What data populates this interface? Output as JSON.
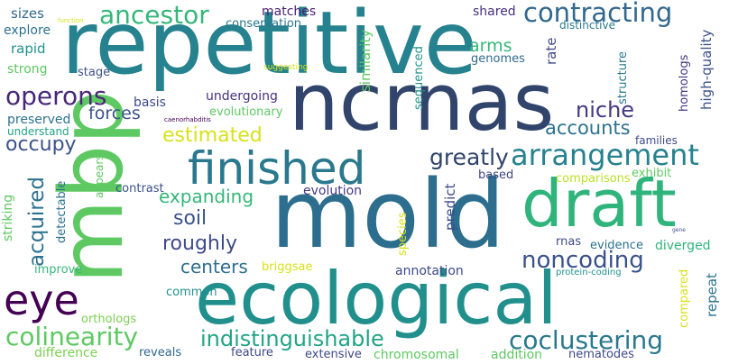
{
  "words": [
    {
      "text": "repetitive",
      "color": "#26828e"
    },
    {
      "text": "ncrnas",
      "color": "#31446b"
    },
    {
      "text": "mold",
      "color": "#2d6e8e"
    },
    {
      "text": "ecological",
      "color": "#21908c"
    },
    {
      "text": "mbp",
      "color": "#5ec962"
    },
    {
      "text": "finished",
      "color": "#2a788e"
    },
    {
      "text": "draft",
      "color": "#2fb47c"
    },
    {
      "text": "eye",
      "color": "#440154"
    },
    {
      "text": "ancestor",
      "color": "#35b779"
    },
    {
      "text": "operons",
      "color": "#482878"
    },
    {
      "text": "contracting",
      "color": "#31688e"
    },
    {
      "text": "arrangement",
      "color": "#26828e"
    },
    {
      "text": "colinearity",
      "color": "#5ec962"
    },
    {
      "text": "coclustering",
      "color": "#2a788e"
    },
    {
      "text": "indistinguishable",
      "color": "#21a585"
    },
    {
      "text": "noncoding",
      "color": "#3b528b"
    },
    {
      "text": "greatly",
      "color": "#31446b"
    },
    {
      "text": "niche",
      "color": "#443983"
    },
    {
      "text": "accounts",
      "color": "#2c728e"
    },
    {
      "text": "acquired",
      "color": "#2c718e"
    },
    {
      "text": "expanding",
      "color": "#35b779"
    },
    {
      "text": "estimated",
      "color": "#d8e219"
    },
    {
      "text": "roughly",
      "color": "#3e4a89"
    },
    {
      "text": "centers",
      "color": "#2e6d8e"
    },
    {
      "text": "soil",
      "color": "#3b528b"
    },
    {
      "text": "forces",
      "color": "#3b528b"
    },
    {
      "text": "occupy",
      "color": "#3b528b"
    },
    {
      "text": "arms",
      "color": "#35b779"
    },
    {
      "text": "matches",
      "color": "#481f70"
    },
    {
      "text": "conservation",
      "color": "#2a788e"
    },
    {
      "text": "shared",
      "color": "#46327e"
    },
    {
      "text": "distinctive",
      "color": "#2a788e"
    },
    {
      "text": "sizes",
      "color": "#31688e"
    },
    {
      "text": "explore",
      "color": "#2c728e"
    },
    {
      "text": "rapid",
      "color": "#21918c"
    },
    {
      "text": "strong",
      "color": "#5ec962"
    },
    {
      "text": "stage",
      "color": "#3b528b"
    },
    {
      "text": "undergoing",
      "color": "#46327e"
    },
    {
      "text": "basis",
      "color": "#3e4a89"
    },
    {
      "text": "evolutionary",
      "color": "#5ec962"
    },
    {
      "text": "preserved",
      "color": "#2c728e"
    },
    {
      "text": "understand",
      "color": "#20a386"
    },
    {
      "text": "genomes",
      "color": "#31688e"
    },
    {
      "text": "rate",
      "color": "#3e4a89"
    },
    {
      "text": "homologs",
      "color": "#443983"
    },
    {
      "text": "high-quality",
      "color": "#3b528b"
    },
    {
      "text": "structure",
      "color": "#2a788e"
    },
    {
      "text": "families",
      "color": "#3e4a89"
    },
    {
      "text": "comparisons",
      "color": "#bddf26"
    },
    {
      "text": "exhibit",
      "color": "#5ec962"
    },
    {
      "text": "evolution",
      "color": "#443983"
    },
    {
      "text": "contrast",
      "color": "#3b528b"
    },
    {
      "text": "based",
      "color": "#404688"
    },
    {
      "text": "evidence",
      "color": "#2c728e"
    },
    {
      "text": "diverged",
      "color": "#2fb47c"
    },
    {
      "text": "rnas",
      "color": "#3e4a89"
    },
    {
      "text": "briggsae",
      "color": "#d8e219"
    },
    {
      "text": "improve",
      "color": "#35b779"
    },
    {
      "text": "annotation",
      "color": "#3e4a89"
    },
    {
      "text": "common",
      "color": "#21918c"
    },
    {
      "text": "orthologs",
      "color": "#7ad151"
    },
    {
      "text": "difference",
      "color": "#7ad151"
    },
    {
      "text": "reveals",
      "color": "#31688e"
    },
    {
      "text": "feature",
      "color": "#3e4a89"
    },
    {
      "text": "extensive",
      "color": "#3e4a89"
    },
    {
      "text": "chromosomal",
      "color": "#5ec962"
    },
    {
      "text": "addition",
      "color": "#5ec962"
    },
    {
      "text": "nematodes",
      "color": "#3e4a89"
    },
    {
      "text": "repeat",
      "color": "#2c728e"
    },
    {
      "text": "compared",
      "color": "#d8e219"
    },
    {
      "text": "protein-coding",
      "color": "#21918c"
    },
    {
      "text": "suggesting",
      "color": "#d8e219"
    },
    {
      "text": "function",
      "color": "#d8e219"
    },
    {
      "text": "caenorhabditis",
      "color": "#440154"
    },
    {
      "text": "gene",
      "color": "#3e4a89"
    },
    {
      "text": "similarity",
      "color": "#5ec962"
    },
    {
      "text": "sequenced",
      "color": "#21918c"
    },
    {
      "text": "appears",
      "color": "#5ec962"
    },
    {
      "text": "detectable",
      "color": "#2c728e"
    },
    {
      "text": "striking",
      "color": "#5ec962"
    },
    {
      "text": "predict",
      "color": "#3e4a89"
    },
    {
      "text": "species",
      "color": "#d8e219"
    }
  ]
}
